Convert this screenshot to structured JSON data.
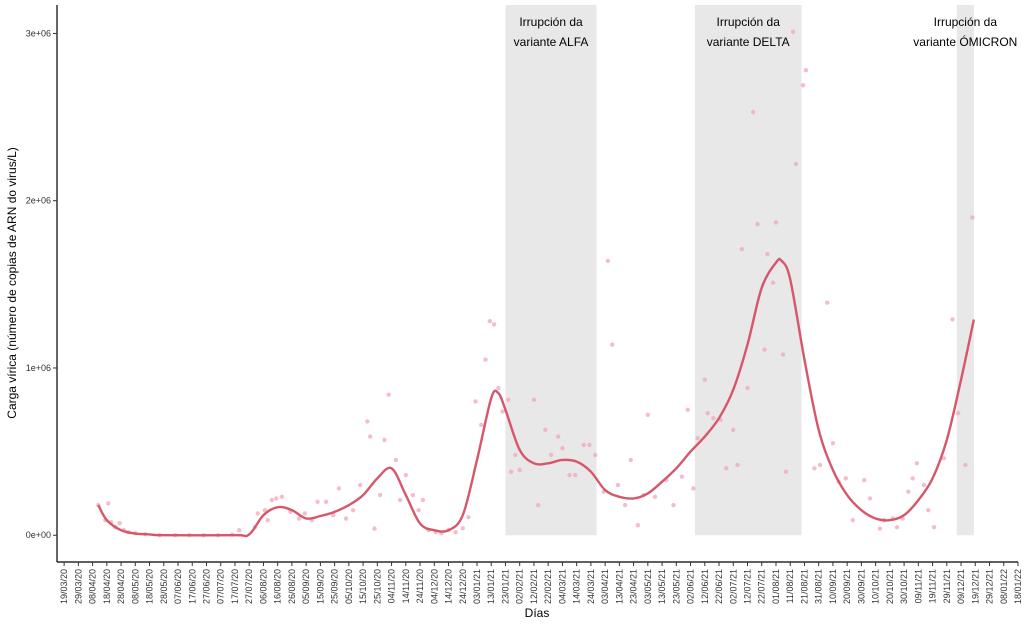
{
  "chart_data": {
    "type": "scatter",
    "x_label": "Días",
    "y_label": "Carga vírica (número de copias de ARN do virus/L)",
    "xlim": [
      "14/03/20",
      "18/01/22"
    ],
    "ylim": [
      -160000,
      3170000
    ],
    "yticks": [
      {
        "value": 0,
        "label": "0e+00"
      },
      {
        "value": 1000000,
        "label": "1e+06"
      },
      {
        "value": 2000000,
        "label": "2e+06"
      },
      {
        "value": 3000000,
        "label": "3e+06"
      }
    ],
    "xticks": [
      "19/03/20",
      "29/03/20",
      "08/04/20",
      "18/04/20",
      "28/04/20",
      "08/05/20",
      "18/05/20",
      "28/05/20",
      "07/06/20",
      "17/06/20",
      "27/06/20",
      "07/07/20",
      "17/07/20",
      "27/07/20",
      "06/08/20",
      "16/08/20",
      "26/08/20",
      "05/09/20",
      "15/09/20",
      "25/09/20",
      "05/10/20",
      "15/10/20",
      "25/10/20",
      "04/11/20",
      "14/11/20",
      "24/11/20",
      "04/12/20",
      "14/12/20",
      "24/12/20",
      "03/01/21",
      "13/01/21",
      "23/01/21",
      "02/02/21",
      "12/02/21",
      "22/02/21",
      "04/03/21",
      "14/03/21",
      "24/03/21",
      "03/04/21",
      "13/04/21",
      "23/04/21",
      "03/05/21",
      "13/05/21",
      "23/05/21",
      "02/06/21",
      "12/06/21",
      "22/06/21",
      "02/07/21",
      "12/07/21",
      "22/07/21",
      "01/08/21",
      "11/08/21",
      "21/08/21",
      "31/08/21",
      "10/09/21",
      "20/09/21",
      "30/09/21",
      "10/10/21",
      "20/10/21",
      "30/10/21",
      "09/11/21",
      "19/11/21",
      "29/11/21",
      "09/12/21",
      "19/12/21",
      "29/12/21",
      "08/01/22",
      "18/01/22"
    ],
    "shade_color": "#e8e8e8",
    "annotations": [
      {
        "start": "23/01/21",
        "end": "28/03/21",
        "text": [
          "Irrupción da",
          "variante ALFA"
        ]
      },
      {
        "start": "05/06/21",
        "end": "19/08/21",
        "text": [
          "Irrupción da",
          "variante DELTA"
        ]
      },
      {
        "start": "06/12/21",
        "end": "18/12/21",
        "text": [
          "Irrupción da",
          "variante ÓMICRON"
        ]
      }
    ],
    "points": {
      "color": "#f2a7b7",
      "x": [
        "12/04/20",
        "17/04/20",
        "19/04/20",
        "21/04/20",
        "24/04/20",
        "27/04/20",
        "30/04/20",
        "03/05/20",
        "08/05/20",
        "15/05/20",
        "25/05/20",
        "05/06/20",
        "15/06/20",
        "25/06/20",
        "05/07/20",
        "15/07/20",
        "20/07/20",
        "31/07/20",
        "02/08/20",
        "07/08/20",
        "09/08/20",
        "12/08/20",
        "15/08/20",
        "19/08/20",
        "25/08/20",
        "31/08/20",
        "04/09/20",
        "09/09/20",
        "13/09/20",
        "19/09/20",
        "24/09/20",
        "28/09/20",
        "03/10/20",
        "08/10/20",
        "13/10/20",
        "18/10/20",
        "20/10/20",
        "23/10/20",
        "27/10/20",
        "30/10/20",
        "02/11/20",
        "07/11/20",
        "10/11/20",
        "14/11/20",
        "19/11/20",
        "23/11/20",
        "26/11/20",
        "30/11/20",
        "05/12/20",
        "09/12/20",
        "14/12/20",
        "19/12/20",
        "24/12/20",
        "28/12/20",
        "02/01/21",
        "06/01/21",
        "09/01/21",
        "12/01/21",
        "15/01/21",
        "18/01/21",
        "21/01/21",
        "25/01/21",
        "27/01/21",
        "30/01/21",
        "02/02/21",
        "12/02/21",
        "15/02/21",
        "20/02/21",
        "24/02/21",
        "01/03/21",
        "04/03/21",
        "09/03/21",
        "13/03/21",
        "19/03/21",
        "23/03/21",
        "27/03/21",
        "02/04/21",
        "05/04/21",
        "08/04/21",
        "12/04/21",
        "17/04/21",
        "21/04/21",
        "26/04/21",
        "30/04/21",
        "03/05/21",
        "08/05/21",
        "16/05/21",
        "21/05/21",
        "27/05/21",
        "31/05/21",
        "04/06/21",
        "07/06/21",
        "12/06/21",
        "14/06/21",
        "18/06/21",
        "23/06/21",
        "27/06/21",
        "02/07/21",
        "05/07/21",
        "08/07/21",
        "12/07/21",
        "16/07/21",
        "19/07/21",
        "24/07/21",
        "26/07/21",
        "30/07/21",
        "01/08/21",
        "06/08/21",
        "08/08/21",
        "13/08/21",
        "15/08/21",
        "20/08/21",
        "22/08/21",
        "28/08/21",
        "01/09/21",
        "06/09/21",
        "10/09/21",
        "14/09/21",
        "19/09/21",
        "24/09/21",
        "02/10/21",
        "06/10/21",
        "13/10/21",
        "16/10/21",
        "22/10/21",
        "25/10/21",
        "29/10/21",
        "02/11/21",
        "05/11/21",
        "08/11/21",
        "13/11/21",
        "16/11/21",
        "20/11/21",
        "27/11/21",
        "03/12/21",
        "07/12/21",
        "12/12/21",
        "17/12/21"
      ],
      "values": [
        180000,
        90000,
        190000,
        78000,
        48000,
        72000,
        30000,
        18000,
        12000,
        6000,
        0,
        0,
        0,
        0,
        0,
        3000,
        30000,
        48000,
        130000,
        150000,
        90000,
        210000,
        220000,
        230000,
        140000,
        100000,
        130000,
        90000,
        200000,
        200000,
        120000,
        280000,
        100000,
        150000,
        300000,
        680000,
        590000,
        40000,
        240000,
        570000,
        840000,
        450000,
        210000,
        360000,
        240000,
        150000,
        210000,
        30000,
        18000,
        12000,
        30000,
        18000,
        42000,
        108000,
        800000,
        660000,
        1050000,
        1280000,
        1260000,
        880000,
        740000,
        810000,
        380000,
        480000,
        390000,
        810000,
        180000,
        630000,
        480000,
        590000,
        520000,
        360000,
        360000,
        540000,
        540000,
        480000,
        260000,
        1640000,
        1140000,
        300000,
        180000,
        450000,
        60000,
        240000,
        720000,
        230000,
        330000,
        180000,
        350000,
        750000,
        280000,
        580000,
        930000,
        730000,
        700000,
        690000,
        400000,
        630000,
        420000,
        1710000,
        880000,
        2530000,
        1860000,
        1110000,
        1680000,
        1510000,
        1870000,
        1080000,
        380000,
        3010000,
        2220000,
        2690000,
        2780000,
        400000,
        420000,
        1390000,
        550000,
        320000,
        340000,
        90000,
        330000,
        220000,
        40000,
        90000,
        100000,
        48000,
        100000,
        260000,
        340000,
        430000,
        300000,
        150000,
        48000,
        460000,
        1290000,
        730000,
        420000,
        1900000
      ]
    },
    "smooth": {
      "color": "#d6566b",
      "x": [
        "12/04/20",
        "18/04/20",
        "28/04/20",
        "08/05/20",
        "18/05/20",
        "28/05/20",
        "17/07/20",
        "27/07/20",
        "06/08/20",
        "16/08/20",
        "26/08/20",
        "05/09/20",
        "15/09/20",
        "25/09/20",
        "05/10/20",
        "15/10/20",
        "25/10/20",
        "04/11/20",
        "14/11/20",
        "24/11/20",
        "04/12/20",
        "14/12/20",
        "24/12/20",
        "03/01/21",
        "13/01/21",
        "18/01/21",
        "23/01/21",
        "02/02/21",
        "12/02/21",
        "22/02/21",
        "04/03/21",
        "14/03/21",
        "24/03/21",
        "03/04/21",
        "13/04/21",
        "23/04/21",
        "03/05/21",
        "13/05/21",
        "23/05/21",
        "02/06/21",
        "12/06/21",
        "22/06/21",
        "02/07/21",
        "12/07/21",
        "22/07/21",
        "01/08/21",
        "05/08/21",
        "11/08/21",
        "21/08/21",
        "31/08/21",
        "10/09/21",
        "20/09/21",
        "30/09/21",
        "10/10/21",
        "20/10/21",
        "30/10/21",
        "09/11/21",
        "19/11/21",
        "29/11/21",
        "09/12/21",
        "18/12/21"
      ],
      "values": [
        180000,
        90000,
        30000,
        10000,
        5000,
        0,
        0,
        5000,
        120000,
        168000,
        150000,
        100000,
        115000,
        140000,
        180000,
        240000,
        340000,
        400000,
        240000,
        70000,
        30000,
        30000,
        120000,
        450000,
        820000,
        850000,
        750000,
        510000,
        430000,
        430000,
        450000,
        440000,
        380000,
        270000,
        230000,
        220000,
        250000,
        320000,
        400000,
        500000,
        590000,
        700000,
        870000,
        1140000,
        1480000,
        1630000,
        1640000,
        1530000,
        1050000,
        630000,
        390000,
        240000,
        150000,
        100000,
        90000,
        120000,
        210000,
        340000,
        570000,
        930000,
        1290000
      ]
    }
  }
}
